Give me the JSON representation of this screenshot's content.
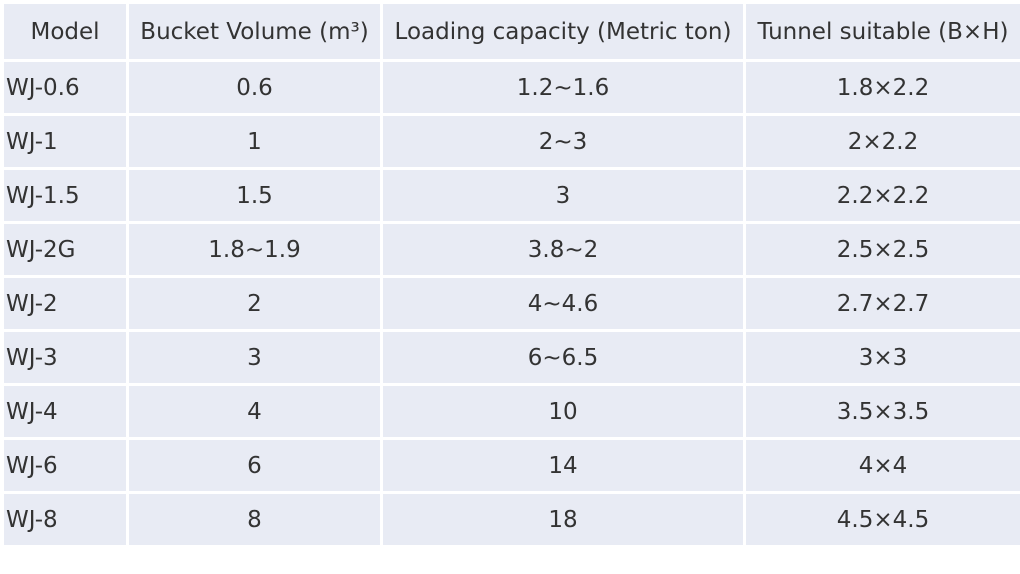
{
  "table": {
    "headers": [
      "Model",
      "Bucket Volume (m³)",
      "Loading capacity (Metric ton)",
      "Tunnel suitable (B×H)"
    ],
    "rows": [
      [
        "WJ-0.6",
        "0.6",
        "1.2~1.6",
        "1.8×2.2"
      ],
      [
        "WJ-1",
        "1",
        "2~3",
        "2×2.2"
      ],
      [
        "WJ-1.5",
        "1.5",
        "3",
        "2.2×2.2"
      ],
      [
        "WJ-2G",
        "1.8~1.9",
        "3.8~2",
        "2.5×2.5"
      ],
      [
        "WJ-2",
        "2",
        "4~4.6",
        "2.7×2.7"
      ],
      [
        "WJ-3",
        "3",
        "6~6.5",
        "3×3"
      ],
      [
        "WJ-4",
        "4",
        "10",
        "3.5×3.5"
      ],
      [
        "WJ-6",
        "6",
        "14",
        "4×4"
      ],
      [
        "WJ-8",
        "8",
        "18",
        "4.5×4.5"
      ]
    ]
  },
  "colors": {
    "cell_background": "#e8ebf4",
    "text": "#333333",
    "grid_lines": "#ffffff"
  }
}
